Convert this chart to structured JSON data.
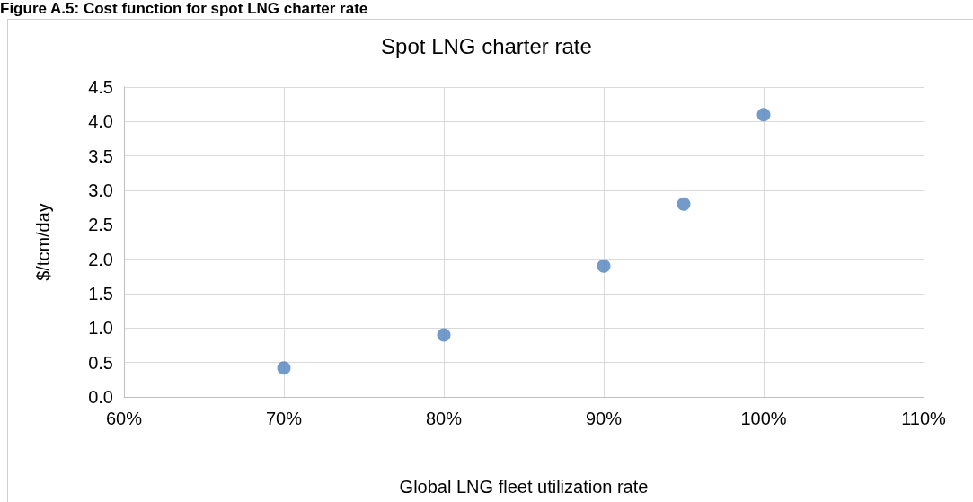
{
  "chart_data": {
    "type": "scatter",
    "title": "Spot LNG charter rate",
    "xlabel": "Global LNG fleet utilization rate",
    "ylabel": "$/tcm/day",
    "annotations": [
      "Figure A.5: Cost function for spot LNG charter rate"
    ],
    "x": [
      70,
      80,
      90,
      95,
      100
    ],
    "series": [
      {
        "color": "#4f81bd",
        "values": [
          0.42,
          0.9,
          1.9,
          2.8,
          4.1
        ]
      }
    ],
    "xlim": [
      60,
      110
    ],
    "xticks": [
      {
        "value": 60,
        "label": "60%"
      },
      {
        "value": 70,
        "label": "70%"
      },
      {
        "value": 80,
        "label": "80%"
      },
      {
        "value": 90,
        "label": "90%"
      },
      {
        "value": 100,
        "label": "100%"
      },
      {
        "value": 110,
        "label": "110%"
      }
    ],
    "ylim": [
      0,
      4.5
    ],
    "yticks": [
      {
        "value": 0,
        "label": "0.0"
      },
      {
        "value": 0.5,
        "label": "0.5"
      },
      {
        "value": 1,
        "label": "1.0"
      },
      {
        "value": 1.5,
        "label": "1.5"
      },
      {
        "value": 2,
        "label": "2.0"
      },
      {
        "value": 2.5,
        "label": "2.5"
      },
      {
        "value": 3,
        "label": "3.0"
      },
      {
        "value": 3.5,
        "label": "3.5"
      },
      {
        "value": 4,
        "label": "4.0"
      },
      {
        "value": 4.5,
        "label": "4.5"
      }
    ],
    "grid": true,
    "marker": "circle"
  }
}
